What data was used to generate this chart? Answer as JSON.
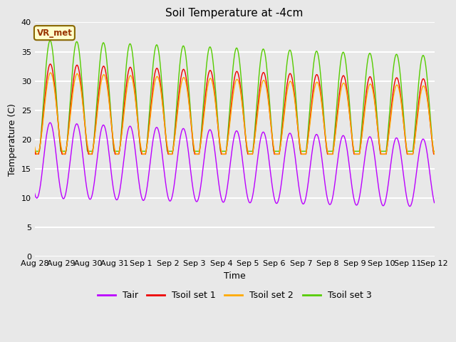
{
  "title": "Soil Temperature at -4cm",
  "xlabel": "Time",
  "ylabel": "Temperature (C)",
  "ylim": [
    0,
    40
  ],
  "yticks": [
    0,
    5,
    10,
    15,
    20,
    25,
    30,
    35,
    40
  ],
  "background_color": "#e8e8e8",
  "plot_bg_color": "#e8e8e8",
  "grid_color": "white",
  "colors": {
    "Tair": "#bb00ff",
    "Tsoil_set1": "#ee0000",
    "Tsoil_set2": "#ffaa00",
    "Tsoil_set3": "#55cc00"
  },
  "annotation_text": "VR_met",
  "annotation_bg": "#ffffcc",
  "annotation_border": "#886600",
  "x_tick_labels": [
    "Aug 28",
    "Aug 29",
    "Aug 30",
    "Aug 31",
    "Sep 1",
    "Sep 2",
    "Sep 3",
    "Sep 4",
    "Sep 5",
    "Sep 6",
    "Sep 7",
    "Sep 8",
    "Sep 9",
    "Sep 10",
    "Sep 11",
    "Sep 12"
  ],
  "n_days": 15,
  "pts_per_day": 144,
  "legend_entries": [
    "Tair",
    "Tsoil set 1",
    "Tsoil set 2",
    "Tsoil set 3"
  ]
}
